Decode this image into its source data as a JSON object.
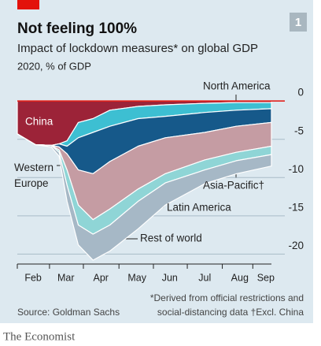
{
  "chart_data": {
    "type": "stacked_area",
    "title": "Not feeling 100%",
    "subtitle": "Impact of lockdown measures* on global GDP",
    "unit_label": "2020, % of GDP",
    "chart_number": "1",
    "x": [
      32,
      48,
      62,
      69,
      76,
      86,
      99,
      114,
      139,
      163,
      198,
      226,
      257
    ],
    "xlim": [
      32,
      257
    ],
    "xticks": [
      {
        "value": 46,
        "label": "Feb"
      },
      {
        "value": 75,
        "label": "Mar"
      },
      {
        "value": 106,
        "label": "Apr"
      },
      {
        "value": 138,
        "label": "May"
      },
      {
        "value": 167,
        "label": "Jun"
      },
      {
        "value": 198,
        "label": "Jul"
      },
      {
        "value": 229,
        "label": "Aug"
      },
      {
        "value": 252,
        "label": "Sep"
      }
    ],
    "ylim": [
      -21.3,
      2.9
    ],
    "yticks": [
      0,
      -5,
      -10,
      -15,
      -20
    ],
    "grid": true,
    "series": [
      {
        "name": "China",
        "color": "#9c2338",
        "values": [
          -4.3,
          -5.7,
          -5.8,
          -5.6,
          -5.2,
          -2.8,
          -2.3,
          -1.2,
          -0.7,
          -0.5,
          -0.3,
          -0.2,
          -0.2
        ]
      },
      {
        "name": "North America",
        "color": "#3dbfd2",
        "values": [
          0,
          0,
          0,
          0,
          -0.7,
          -2.0,
          -1.8,
          -2.1,
          -1.6,
          -1.5,
          -1.2,
          -1.0,
          -0.8
        ]
      },
      {
        "name": "Western Europe",
        "color": "#16598a",
        "values": [
          0,
          0,
          0,
          -0.4,
          -1.0,
          -4.2,
          -5.4,
          -4.6,
          -3.6,
          -2.8,
          -2.6,
          -2.1,
          -1.8
        ]
      },
      {
        "name": "Asia-Pacific†",
        "color": "#c59ca3",
        "values": [
          0,
          0,
          0,
          -0.4,
          -2.1,
          -4.6,
          -6.0,
          -6.2,
          -5.6,
          -4.7,
          -3.6,
          -3.4,
          -3.1
        ]
      },
      {
        "name": "Latin America",
        "color": "#8fd5d6",
        "values": [
          0,
          0,
          0,
          -0.3,
          -2.0,
          -2.6,
          -1.9,
          -2.1,
          -1.6,
          -1.2,
          -1.3,
          -1.1,
          -1.1
        ]
      },
      {
        "name": "Rest of world",
        "color": "#a6b8c6",
        "values": [
          0,
          0,
          -0.2,
          -0.5,
          -2.1,
          -2.6,
          -3.4,
          -3.4,
          -3.6,
          -2.9,
          -1.8,
          -1.7,
          -1.5
        ]
      }
    ],
    "source": "Source: Goldman Sachs",
    "footnote": [
      "*Derived from official restrictions and",
      "social-distancing data   †Excl. China"
    ],
    "publisher": "The Economist"
  }
}
